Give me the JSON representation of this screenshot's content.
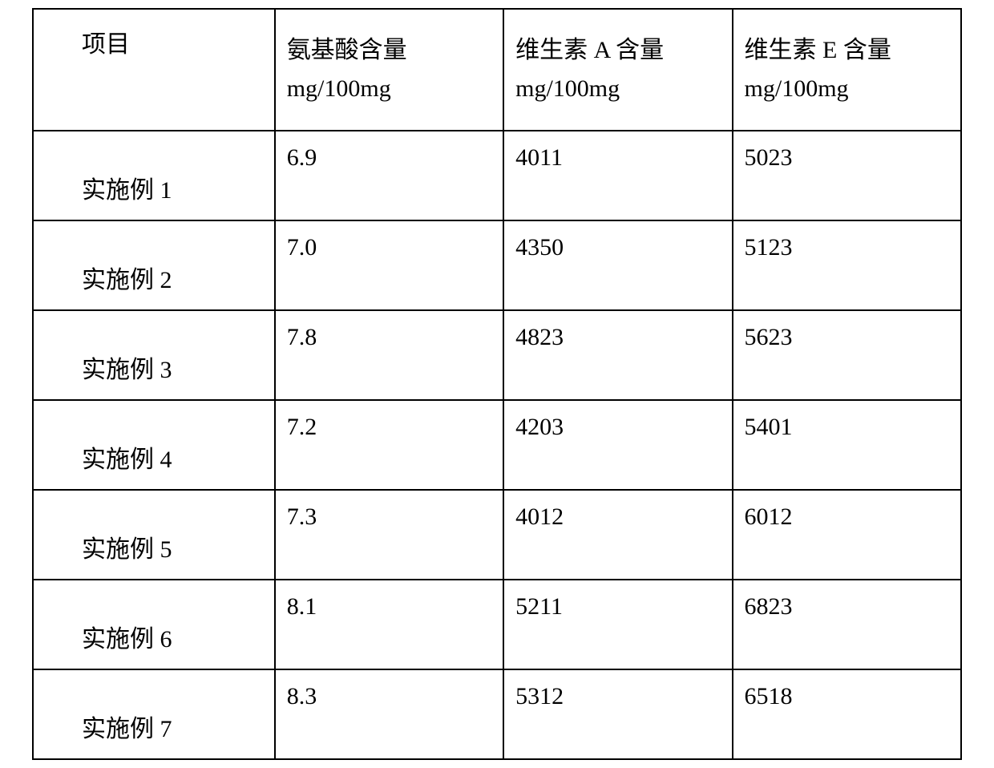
{
  "table": {
    "type": "table",
    "border_color": "#000000",
    "background_color": "#ffffff",
    "text_color": "#000000",
    "font_family": "SimSun",
    "header_fontsize": 30,
    "cell_fontsize": 30,
    "columns": [
      {
        "label": "项目",
        "unit": ""
      },
      {
        "label": "氨基酸含量",
        "unit": "mg/100mg"
      },
      {
        "label": "维生素 A 含量",
        "unit": "mg/100mg"
      },
      {
        "label": "维生素 E 含量",
        "unit": "mg/100mg"
      }
    ],
    "rows": [
      {
        "name": "实施例 1",
        "amino": "6.9",
        "vitA": "4011",
        "vitE": "5023"
      },
      {
        "name": "实施例 2",
        "amino": "7.0",
        "vitA": "4350",
        "vitE": "5123"
      },
      {
        "name": "实施例 3",
        "amino": "7.8",
        "vitA": "4823",
        "vitE": "5623"
      },
      {
        "name": "实施例 4",
        "amino": "7.2",
        "vitA": "4203",
        "vitE": "5401"
      },
      {
        "name": "实施例 5",
        "amino": "7.3",
        "vitA": "4012",
        "vitE": "6012"
      },
      {
        "name": "实施例 6",
        "amino": "8.1",
        "vitA": "5211",
        "vitE": "6823"
      },
      {
        "name": "实施例 7",
        "amino": "8.3",
        "vitA": "5312",
        "vitE": "6518"
      }
    ]
  }
}
